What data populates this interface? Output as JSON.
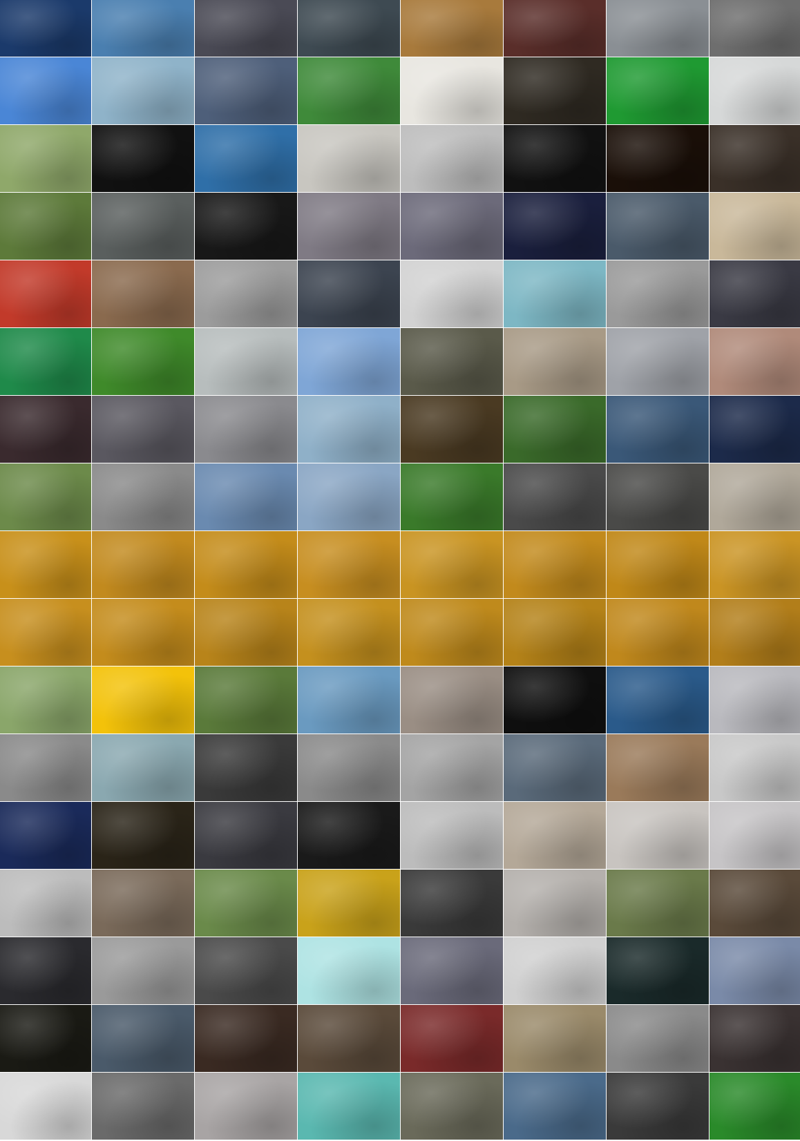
{
  "tiles": [
    [
      "#1b3a6b",
      "#4a7fb0",
      "#4a4a55",
      "#3e4a52",
      "#a87a3c",
      "#5a2e2a",
      "#8a8f94",
      "#6e6e6e"
    ],
    [
      "#4a86d6",
      "#8fb3c9",
      "#4e5f7a",
      "#3f8a3a",
      "#e8e6e0",
      "#2f2a22",
      "#1f9a32",
      "#d6d8d8"
    ],
    [
      "#8fa86a",
      "#111111",
      "#2f6fa8",
      "#c8c6c0",
      "#bdbdbd",
      "#111111",
      "#1a0f08",
      "#3a3028"
    ],
    [
      "#5d7a3a",
      "#5a5f5e",
      "#181818",
      "#7f7a84",
      "#6c6a7a",
      "#1a1f3d",
      "#4a5a6a",
      "#c9b89a"
    ],
    [
      "#c23a2a",
      "#8a6a4e",
      "#9c9c9c",
      "#3c4450",
      "#d2d2d2",
      "#7db7c4",
      "#9a9a9a",
      "#3a3a44"
    ],
    [
      "#1f8a4a",
      "#3f8a2a",
      "#b7bdbd",
      "#7fa6d6",
      "#5a5a4a",
      "#a89a86",
      "#9fa2a8",
      "#b08a7a"
    ],
    [
      "#3a2a2e",
      "#5a5860",
      "#8a8a8e",
      "#8fb0c8",
      "#4a3a22",
      "#3a6a2a",
      "#3a5878",
      "#1c2a4a"
    ],
    [
      "#6c8a4a",
      "#8a8a8a",
      "#6a8ab0",
      "#8aa6c4",
      "#3a7a2a",
      "#4a4a4a",
      "#4a4a48",
      "#b0a89a"
    ],
    [
      "#c8901a",
      "#c28a1e",
      "#c48c1a",
      "#c78e20",
      "#c99422",
      "#c28a1c",
      "#c08818",
      "#ca9424"
    ],
    [
      "#c78f1e",
      "#c48c1c",
      "#b8841a",
      "#c4901e",
      "#bf8a1c",
      "#b48218",
      "#c0881c",
      "#b27e1a"
    ],
    [
      "#8aa66a",
      "#f3c20a",
      "#5a7a3a",
      "#6a9ac0",
      "#9a8e84",
      "#0f0f0f",
      "#2a5a8a",
      "#b9b9be"
    ],
    [
      "#8a8a8a",
      "#8aa8b0",
      "#3a3a3a",
      "#8a8a8a",
      "#a4a4a4",
      "#5a6a7a",
      "#9a7a5a",
      "#c8c8c8"
    ],
    [
      "#1a2a5a",
      "#2a2418",
      "#3a3a40",
      "#1a1a1a",
      "#bcbcbc",
      "#b4a898",
      "#c8c4c0",
      "#c6c4c6"
    ],
    [
      "#bcbcbc",
      "#7a6a5a",
      "#6a8a4a",
      "#c9a21a",
      "#3a3a3a",
      "#b4b0ac",
      "#6a7a4a",
      "#5a4a3a"
    ],
    [
      "#2a2a2e",
      "#9a9a9a",
      "#4a4a4a",
      "#aee3e3",
      "#6a6a7a",
      "#d0d0d0",
      "#1a2a2a",
      "#7a8aa8"
    ],
    [
      "#1a1a14",
      "#4a5a6a",
      "#3a2a22",
      "#5a4a3a",
      "#7a2a2a",
      "#9a8a6a",
      "#8a8a8a",
      "#3a3232"
    ],
    [
      "#d8d8d8",
      "#6a6a6a",
      "#a8a4a4",
      "#5ab8b0",
      "#6a6a5a",
      "#4a6a8a",
      "#3a3a3a",
      "#2a8a2a"
    ]
  ]
}
